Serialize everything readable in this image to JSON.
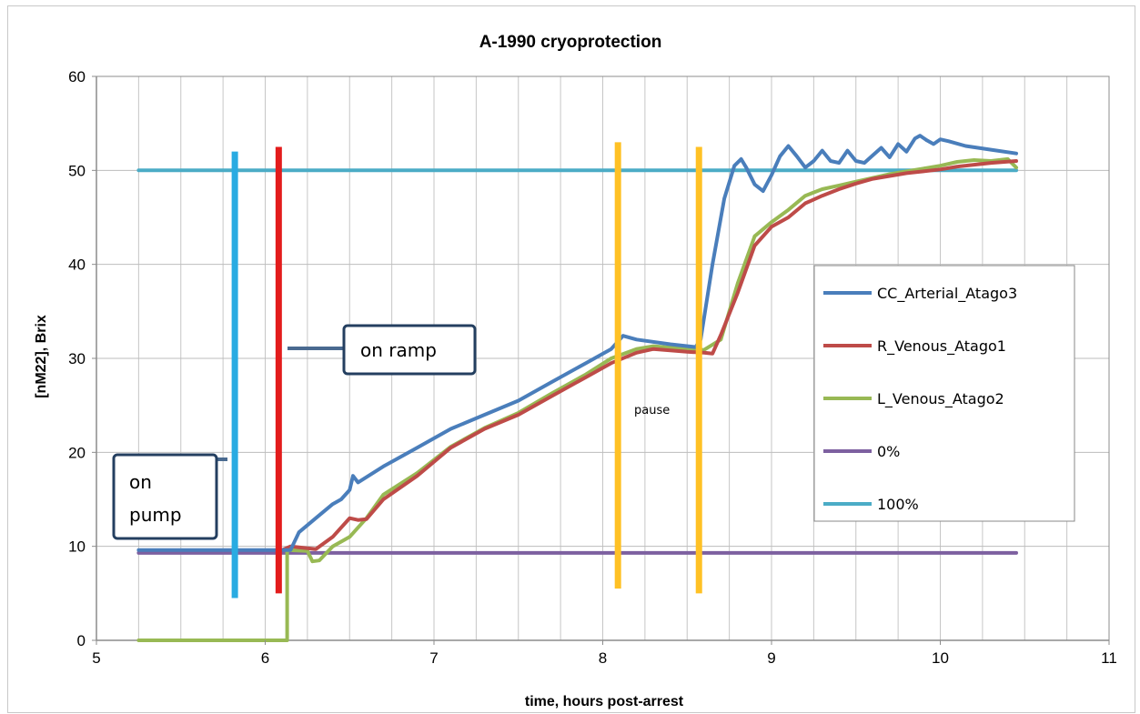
{
  "chart_data": {
    "type": "line",
    "title": "A-1990 cryoprotection",
    "xlabel": "time, hours post-arrest",
    "ylabel": "[nM22], Brix",
    "xlim": [
      5,
      11
    ],
    "ylim": [
      0,
      60
    ],
    "xticks": [
      5,
      6,
      7,
      8,
      9,
      10,
      11
    ],
    "yticks": [
      0,
      10,
      20,
      30,
      40,
      50,
      60
    ],
    "grid": true,
    "legend_position": "right",
    "series": [
      {
        "name": "CC_Arterial_Atago3",
        "color": "#4a7ebb",
        "points": [
          [
            5.25,
            9.6
          ],
          [
            6.0,
            9.6
          ],
          [
            6.15,
            9.6
          ],
          [
            6.2,
            11.5
          ],
          [
            6.3,
            13
          ],
          [
            6.4,
            14.5
          ],
          [
            6.45,
            15
          ],
          [
            6.5,
            16
          ],
          [
            6.52,
            17.5
          ],
          [
            6.55,
            16.8
          ],
          [
            6.7,
            18.5
          ],
          [
            6.9,
            20.5
          ],
          [
            7.1,
            22.5
          ],
          [
            7.3,
            24
          ],
          [
            7.5,
            25.5
          ],
          [
            7.7,
            27.5
          ],
          [
            7.9,
            29.5
          ],
          [
            8.05,
            31
          ],
          [
            8.12,
            32.4
          ],
          [
            8.2,
            32
          ],
          [
            8.4,
            31.5
          ],
          [
            8.55,
            31.2
          ],
          [
            8.58,
            32
          ],
          [
            8.65,
            40
          ],
          [
            8.72,
            47
          ],
          [
            8.78,
            50.5
          ],
          [
            8.82,
            51.2
          ],
          [
            8.85,
            50.3
          ],
          [
            8.9,
            48.5
          ],
          [
            8.95,
            47.8
          ],
          [
            9.0,
            49.5
          ],
          [
            9.05,
            51.5
          ],
          [
            9.1,
            52.6
          ],
          [
            9.15,
            51.5
          ],
          [
            9.2,
            50.3
          ],
          [
            9.25,
            51
          ],
          [
            9.3,
            52.1
          ],
          [
            9.35,
            51
          ],
          [
            9.4,
            50.8
          ],
          [
            9.45,
            52.1
          ],
          [
            9.5,
            51
          ],
          [
            9.55,
            50.8
          ],
          [
            9.6,
            51.6
          ],
          [
            9.65,
            52.4
          ],
          [
            9.7,
            51.4
          ],
          [
            9.75,
            52.8
          ],
          [
            9.8,
            52
          ],
          [
            9.85,
            53.4
          ],
          [
            9.88,
            53.7
          ],
          [
            9.92,
            53.2
          ],
          [
            9.96,
            52.8
          ],
          [
            10.0,
            53.3
          ],
          [
            10.05,
            53.1
          ],
          [
            10.15,
            52.6
          ],
          [
            10.3,
            52.2
          ],
          [
            10.45,
            51.8
          ]
        ]
      },
      {
        "name": "R_Venous_Atago1",
        "color": "#be4b48",
        "points": [
          [
            6.1,
            9.6
          ],
          [
            6.15,
            10
          ],
          [
            6.3,
            9.7
          ],
          [
            6.4,
            11
          ],
          [
            6.5,
            13
          ],
          [
            6.55,
            12.8
          ],
          [
            6.6,
            12.9
          ],
          [
            6.7,
            15
          ],
          [
            6.9,
            17.5
          ],
          [
            7.1,
            20.5
          ],
          [
            7.3,
            22.5
          ],
          [
            7.5,
            24
          ],
          [
            7.7,
            26
          ],
          [
            7.9,
            28
          ],
          [
            8.05,
            29.5
          ],
          [
            8.2,
            30.6
          ],
          [
            8.3,
            31
          ],
          [
            8.5,
            30.7
          ],
          [
            8.6,
            30.6
          ],
          [
            8.65,
            30.5
          ],
          [
            8.7,
            32.5
          ],
          [
            8.8,
            37
          ],
          [
            8.9,
            42
          ],
          [
            9.0,
            44
          ],
          [
            9.1,
            45
          ],
          [
            9.2,
            46.5
          ],
          [
            9.3,
            47.3
          ],
          [
            9.4,
            48
          ],
          [
            9.5,
            48.6
          ],
          [
            9.6,
            49.1
          ],
          [
            9.7,
            49.4
          ],
          [
            9.8,
            49.7
          ],
          [
            9.9,
            49.9
          ],
          [
            10.0,
            50.1
          ],
          [
            10.1,
            50.4
          ],
          [
            10.2,
            50.6
          ],
          [
            10.3,
            50.8
          ],
          [
            10.45,
            51
          ]
        ]
      },
      {
        "name": "L_Venous_Atago2",
        "color": "#98b954",
        "points": [
          [
            5.25,
            0
          ],
          [
            6.13,
            0
          ],
          [
            6.13,
            9.6
          ],
          [
            6.25,
            9.5
          ],
          [
            6.28,
            8.4
          ],
          [
            6.32,
            8.5
          ],
          [
            6.4,
            10
          ],
          [
            6.5,
            11
          ],
          [
            6.6,
            13
          ],
          [
            6.7,
            15.5
          ],
          [
            6.9,
            17.8
          ],
          [
            7.1,
            20.6
          ],
          [
            7.3,
            22.6
          ],
          [
            7.5,
            24.2
          ],
          [
            7.7,
            26.3
          ],
          [
            7.9,
            28.3
          ],
          [
            8.05,
            30
          ],
          [
            8.2,
            31
          ],
          [
            8.3,
            31.3
          ],
          [
            8.5,
            31
          ],
          [
            8.6,
            30.9
          ],
          [
            8.7,
            32
          ],
          [
            8.8,
            38
          ],
          [
            8.9,
            43
          ],
          [
            9.0,
            44.5
          ],
          [
            9.1,
            45.8
          ],
          [
            9.2,
            47.3
          ],
          [
            9.3,
            48
          ],
          [
            9.4,
            48.4
          ],
          [
            9.5,
            48.8
          ],
          [
            9.6,
            49.2
          ],
          [
            9.7,
            49.6
          ],
          [
            9.8,
            49.9
          ],
          [
            9.9,
            50.2
          ],
          [
            10.0,
            50.5
          ],
          [
            10.1,
            50.9
          ],
          [
            10.2,
            51.1
          ],
          [
            10.3,
            51
          ],
          [
            10.4,
            51.2
          ],
          [
            10.45,
            50.3
          ]
        ]
      },
      {
        "name": "0%",
        "color": "#7d60a0",
        "points": [
          [
            5.25,
            9.3
          ],
          [
            10.45,
            9.3
          ]
        ]
      },
      {
        "name": "100%",
        "color": "#4bacc6",
        "points": [
          [
            5.25,
            50
          ],
          [
            10.45,
            50
          ]
        ]
      }
    ],
    "markers": [
      {
        "x": 5.82,
        "y_from": 4.5,
        "y_to": 52,
        "color": "#29abe2"
      },
      {
        "x": 6.08,
        "y_from": 5,
        "y_to": 52.5,
        "color": "#e31c1c"
      },
      {
        "x": 8.09,
        "y_from": 5.5,
        "y_to": 53,
        "color": "#ffc125"
      },
      {
        "x": 8.57,
        "y_from": 5,
        "y_to": 52.5,
        "color": "#ffc125"
      }
    ],
    "annotations": {
      "on_pump": [
        "on",
        "pump"
      ],
      "on_ramp": "on ramp",
      "pause": "pause"
    }
  }
}
